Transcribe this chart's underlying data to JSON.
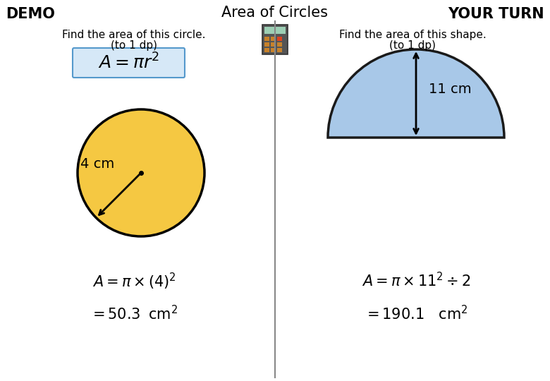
{
  "title": "Area of Circles",
  "demo_label": "DEMO",
  "yourturn_label": "YOUR TURN",
  "circle_color": "#F5C842",
  "circle_edge_color": "#000000",
  "circle_radius_label": "4 cm",
  "semicircle_color": "#A8C8E8",
  "semicircle_edge_color": "#1a1a1a",
  "semicircle_radius_label": "11 cm",
  "divider_color": "#888888",
  "background_color": "#ffffff",
  "formula_box_color": "#D6E8F7",
  "formula_box_edge": "#5599CC"
}
